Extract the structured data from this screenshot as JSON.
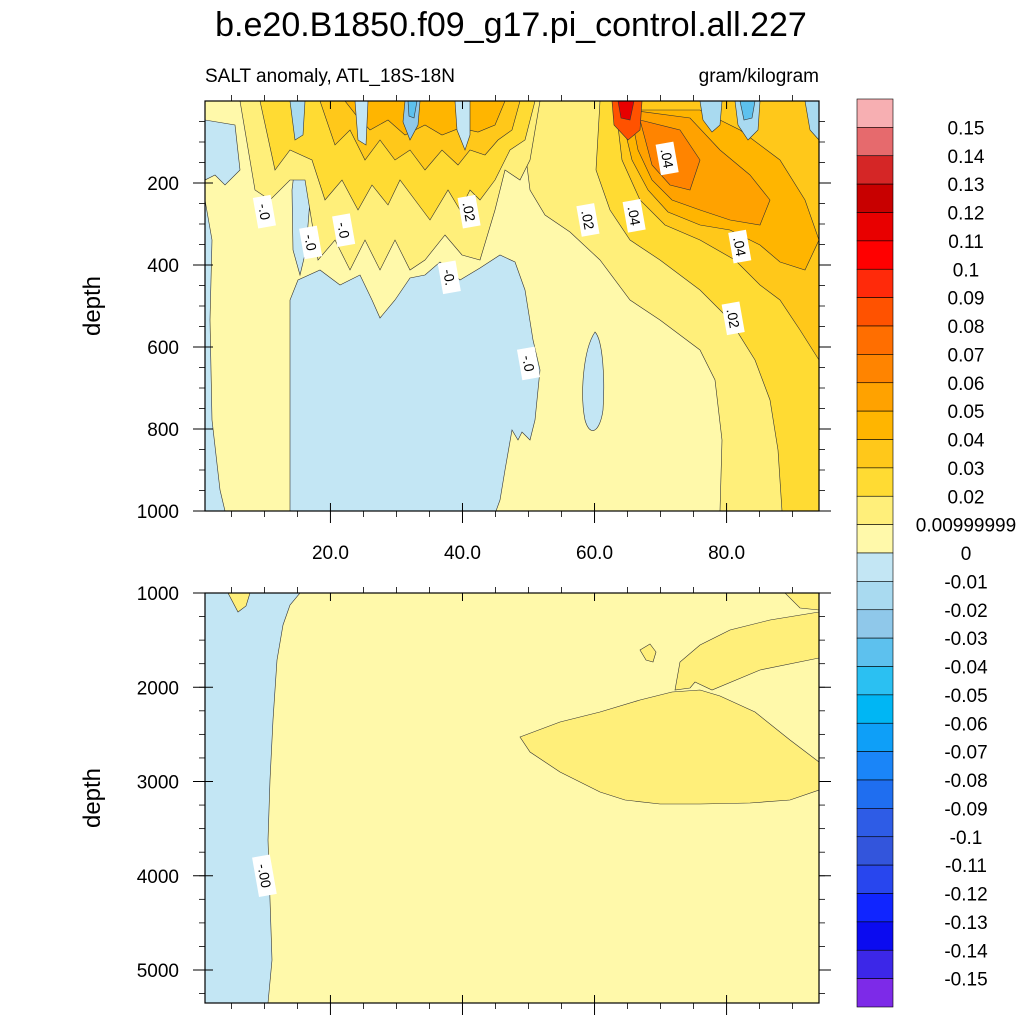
{
  "title": "b.e20.B1850.f09_g17.pi_control.all.227",
  "subtitle_left": "SALT anomaly, ATL_18S-18N",
  "subtitle_right": "gram/kilogram",
  "chart_data": [
    {
      "type": "heatmap",
      "panel": "upper",
      "ylabel": "depth",
      "xlim": [
        1,
        94
      ],
      "ylim": [
        1000,
        0
      ],
      "x_ticks": [
        20,
        40,
        60,
        80
      ],
      "x_tick_labels": [
        "20.0",
        "40.0",
        "60.0",
        "80.0"
      ],
      "y_ticks": [
        200,
        400,
        600,
        800,
        1000
      ],
      "y_tick_labels": [
        "200",
        "400",
        "600",
        "800",
        "1000"
      ],
      "grid": false,
      "contour_labels": [
        {
          "text": "-.0",
          "x": 10,
          "y": 270
        },
        {
          "text": "-.0",
          "x": 17,
          "y": 345
        },
        {
          "text": "-.0",
          "x": 22,
          "y": 315
        },
        {
          "text": ".02",
          "x": 41,
          "y": 270
        },
        {
          "text": "-0.",
          "x": 38,
          "y": 430
        },
        {
          "text": ".02",
          "x": 59,
          "y": 290
        },
        {
          "text": ".04",
          "x": 66,
          "y": 280
        },
        {
          "text": ".04",
          "x": 71,
          "y": 140
        },
        {
          "text": ".04",
          "x": 82,
          "y": 355
        },
        {
          "text": ".02",
          "x": 81,
          "y": 530
        },
        {
          "text": "-.0",
          "x": 50,
          "y": 640
        }
      ]
    },
    {
      "type": "heatmap",
      "panel": "lower",
      "ylabel": "depth",
      "xlim": [
        1,
        94
      ],
      "ylim": [
        5350,
        1000
      ],
      "y_ticks": [
        1000,
        2000,
        3000,
        4000,
        5000
      ],
      "y_tick_labels": [
        "1000",
        "2000",
        "3000",
        "4000",
        "5000"
      ],
      "grid": false,
      "contour_labels": [
        {
          "text": "-.00",
          "x": 10,
          "y": 4000
        }
      ]
    }
  ],
  "colorbar": {
    "labels": [
      "0.15",
      "0.14",
      "0.13",
      "0.12",
      "0.11",
      "0.1",
      "0.09",
      "0.08",
      "0.07",
      "0.06",
      "0.05",
      "0.04",
      "0.03",
      "0.02",
      "0.00999999",
      "0",
      "-0.01",
      "-0.02",
      "-0.03",
      "-0.04",
      "-0.05",
      "-0.06",
      "-0.07",
      "-0.08",
      "-0.09",
      "-0.1",
      "-0.11",
      "-0.12",
      "-0.13",
      "-0.14",
      "-0.15"
    ],
    "colors": [
      "#F7AFB2",
      "#E66A6D",
      "#D52626",
      "#C80000",
      "#E80000",
      "#FF0000",
      "#FF2A0A",
      "#FF5200",
      "#FF6E00",
      "#FF8400",
      "#FFA200",
      "#FFB500",
      "#FFC81A",
      "#FFDB33",
      "#FFEF7A",
      "#FFF9AA",
      "#C3E6F4",
      "#A9DAF0",
      "#8FC8EA",
      "#5DC1EE",
      "#2BC0F2",
      "#00B6F4",
      "#0E9FF8",
      "#1A85F8",
      "#1F6EF0",
      "#2E5CE6",
      "#3355DC",
      "#2846EE",
      "#1025FF",
      "#0B0BF0",
      "#3C27E8",
      "#7D2AE8"
    ]
  }
}
